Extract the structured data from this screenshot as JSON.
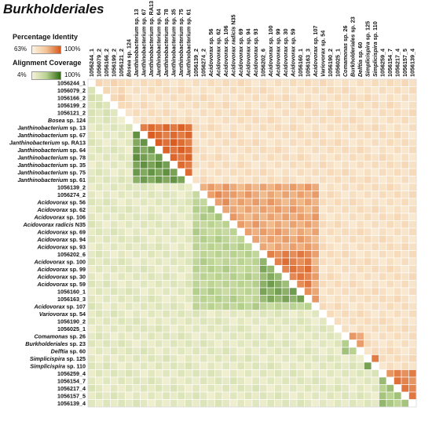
{
  "title": "Burkholderiales",
  "legend": {
    "identity": {
      "title": "Percentage Identity",
      "min": "63%",
      "max": "100%",
      "colors": [
        "#fbf4e2",
        "#f2c396",
        "#d9581c"
      ]
    },
    "coverage": {
      "title": "Alignment Coverage",
      "min": "4%",
      "max": "100%",
      "colors": [
        "#f7f2d8",
        "#b9d290",
        "#2f6b14"
      ]
    }
  },
  "chart_data": {
    "type": "heatmap",
    "description_of_layout": "",
    "labels": [
      {
        "text": "1056244_1",
        "italic_part": ""
      },
      {
        "text": "1056079_2",
        "italic_part": ""
      },
      {
        "text": "1056166_2",
        "italic_part": ""
      },
      {
        "text": "1056199_2",
        "italic_part": ""
      },
      {
        "text": "1056121_2",
        "italic_part": ""
      },
      {
        "text": "Bosea sp. 124",
        "italic_part": "Bosea"
      },
      {
        "text": "Janthinobacterium sp. 13",
        "italic_part": "Janthinobacterium"
      },
      {
        "text": "Janthinobacterium sp. 67",
        "italic_part": "Janthinobacterium"
      },
      {
        "text": "Janthinobacterium sp. RA13",
        "italic_part": "Janthinobacterium"
      },
      {
        "text": "Janthinobacterium sp. 64",
        "italic_part": "Janthinobacterium"
      },
      {
        "text": "Janthinobacterium sp. 78",
        "italic_part": "Janthinobacterium"
      },
      {
        "text": "Janthinobacterium sp. 35",
        "italic_part": "Janthinobacterium"
      },
      {
        "text": "Janthinobacterium sp. 75",
        "italic_part": "Janthinobacterium"
      },
      {
        "text": "Janthinobacterium sp. 61",
        "italic_part": "Janthinobacterium"
      },
      {
        "text": "1056139_2",
        "italic_part": ""
      },
      {
        "text": "1056274_2",
        "italic_part": ""
      },
      {
        "text": "Acidovorax sp. 56",
        "italic_part": "Acidovorax"
      },
      {
        "text": "Acidovorax sp. 62",
        "italic_part": "Acidovorax"
      },
      {
        "text": "Acidovorax sp. 106",
        "italic_part": "Acidovorax"
      },
      {
        "text": "Acidovorax radicis N35",
        "italic_part": "Acidovorax radicis"
      },
      {
        "text": "Acidovorax sp. 69",
        "italic_part": "Acidovorax"
      },
      {
        "text": "Acidovorax sp. 94",
        "italic_part": "Acidovorax"
      },
      {
        "text": "Acidovorax sp. 93",
        "italic_part": "Acidovorax"
      },
      {
        "text": "1056202_6",
        "italic_part": ""
      },
      {
        "text": "Acidovorax sp. 100",
        "italic_part": "Acidovorax"
      },
      {
        "text": "Acidovorax sp. 99",
        "italic_part": "Acidovorax"
      },
      {
        "text": "Acidovorax sp. 30",
        "italic_part": "Acidovorax"
      },
      {
        "text": "Acidovorax sp. 59",
        "italic_part": "Acidovorax"
      },
      {
        "text": "1056160_1",
        "italic_part": ""
      },
      {
        "text": "1056163_3",
        "italic_part": ""
      },
      {
        "text": "Acidovorax sp. 107",
        "italic_part": "Acidovorax"
      },
      {
        "text": "Variovorax sp. 54",
        "italic_part": "Variovorax"
      },
      {
        "text": "1056190_2",
        "italic_part": ""
      },
      {
        "text": "1056025_1",
        "italic_part": ""
      },
      {
        "text": "Comamonas sp. 26",
        "italic_part": "Comamonas"
      },
      {
        "text": "Burkholderiales sp. 23",
        "italic_part": "Burkholderiales"
      },
      {
        "text": "Delftia sp. 60",
        "italic_part": "Delftia"
      },
      {
        "text": "Simplicispira sp. 125",
        "italic_part": "Simplicispira"
      },
      {
        "text": "Simplicispira sp. 110",
        "italic_part": "Simplicispira"
      },
      {
        "text": "1056259_4",
        "italic_part": ""
      },
      {
        "text": "1056154_7",
        "italic_part": ""
      },
      {
        "text": "1056217_4",
        "italic_part": ""
      },
      {
        "text": "1056157_5",
        "italic_part": ""
      },
      {
        "text": "1056139_4",
        "italic_part": ""
      }
    ],
    "clusters": [
      {
        "rows": [
          0,
          4
        ],
        "identity": 0.3,
        "coverage": 0.25
      },
      {
        "rows": [
          6,
          13
        ],
        "identity": 0.9,
        "coverage": 0.75
      },
      {
        "rows": [
          14,
          30
        ],
        "identity": 0.62,
        "coverage": 0.45
      },
      {
        "rows": [
          23,
          29
        ],
        "identity": 0.82,
        "coverage": 0.68
      },
      {
        "rows": [
          15,
          18
        ],
        "identity": 0.72,
        "coverage": 0.5
      },
      {
        "rows": [
          34,
          36
        ],
        "identity": 0.7,
        "coverage": 0.55
      },
      {
        "rows": [
          37,
          38
        ],
        "identity": 0.88,
        "coverage": 0.82
      },
      {
        "rows": [
          39,
          43
        ],
        "identity": 0.8,
        "coverage": 0.55
      }
    ],
    "upper_triangle": "Percentage Identity",
    "lower_triangle": "Alignment Coverage",
    "identity_range": [
      63,
      100
    ],
    "coverage_range": [
      4,
      100
    ]
  }
}
